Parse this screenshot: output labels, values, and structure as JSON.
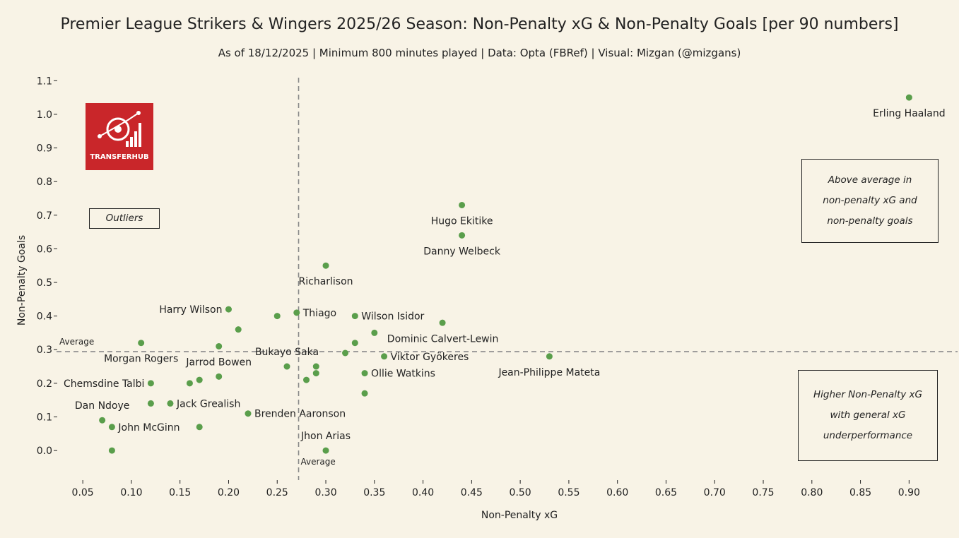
{
  "title": "Premier League Strikers & Wingers 2025/26 Season: Non-Penalty xG & Non-Penalty Goals [per 90 numbers]",
  "subtitle": "As of 18/12/2025 | Minimum 800 minutes played | Data: Opta (FBRef) | Visual: Mizgan (@mizgans)",
  "logo_text": "TRANSFERHUB",
  "annotations": {
    "outliers": "Outliers",
    "top_right": [
      "Above average in",
      "non-penalty xG and",
      "non-penalty goals"
    ],
    "bottom_right": [
      "Higher Non-Penalty xG",
      "with general xG",
      "underperformance"
    ]
  },
  "colors": {
    "point": "#5a9e4b",
    "background": "#f8f3e6",
    "logo": "#c9262a"
  },
  "chart_data": {
    "type": "scatter",
    "xlabel": "Non-Penalty xG",
    "ylabel": "Non-Penalty Goals",
    "xlim": [
      0.023,
      0.939
    ],
    "ylim": [
      -0.088,
      1.109
    ],
    "xticks": [
      "0.05",
      "0.10",
      "0.15",
      "0.20",
      "0.25",
      "0.30",
      "0.35",
      "0.40",
      "0.45",
      "0.50",
      "0.55",
      "0.60",
      "0.65",
      "0.70",
      "0.75",
      "0.80",
      "0.85",
      "0.90"
    ],
    "yticks": [
      "0.0",
      "0.1",
      "0.2",
      "0.3",
      "0.4",
      "0.5",
      "0.6",
      "0.7",
      "0.8",
      "0.9",
      "1.0",
      "1.1"
    ],
    "average_x": 0.272,
    "average_y": 0.294,
    "average_label": "Average",
    "grid": false,
    "points": [
      {
        "x": 0.9,
        "y": 1.05,
        "label": "Erling Haaland",
        "pos": "below"
      },
      {
        "x": 0.44,
        "y": 0.73,
        "label": "Hugo Ekitike",
        "pos": "below"
      },
      {
        "x": 0.44,
        "y": 0.64,
        "label": "Danny Welbeck",
        "pos": "below"
      },
      {
        "x": 0.3,
        "y": 0.55,
        "label": "Richarlison",
        "pos": "below"
      },
      {
        "x": 0.2,
        "y": 0.42,
        "label": "Harry Wilson",
        "pos": "left"
      },
      {
        "x": 0.25,
        "y": 0.4,
        "label": "",
        "pos": ""
      },
      {
        "x": 0.27,
        "y": 0.41,
        "label": "Thiago",
        "pos": "right"
      },
      {
        "x": 0.33,
        "y": 0.4,
        "label": "Wilson Isidor",
        "pos": "right"
      },
      {
        "x": 0.42,
        "y": 0.38,
        "label": "",
        "pos": ""
      },
      {
        "x": 0.21,
        "y": 0.36,
        "label": "",
        "pos": ""
      },
      {
        "x": 0.35,
        "y": 0.35,
        "label": "Dominic Calvert-Lewin",
        "pos": "below-right"
      },
      {
        "x": 0.11,
        "y": 0.32,
        "label": "Morgan Rogers",
        "pos": "below"
      },
      {
        "x": 0.33,
        "y": 0.32,
        "label": "",
        "pos": ""
      },
      {
        "x": 0.19,
        "y": 0.31,
        "label": "Jarrod Bowen",
        "pos": "below"
      },
      {
        "x": 0.32,
        "y": 0.29,
        "label": "",
        "pos": ""
      },
      {
        "x": 0.36,
        "y": 0.28,
        "label": "Viktor Gyökeres",
        "pos": "right"
      },
      {
        "x": 0.53,
        "y": 0.28,
        "label": "Jean-Philippe Mateta",
        "pos": "below"
      },
      {
        "x": 0.26,
        "y": 0.25,
        "label": "Bukayo Saka",
        "pos": "above"
      },
      {
        "x": 0.29,
        "y": 0.25,
        "label": "",
        "pos": ""
      },
      {
        "x": 0.29,
        "y": 0.23,
        "label": "",
        "pos": ""
      },
      {
        "x": 0.34,
        "y": 0.23,
        "label": "Ollie Watkins",
        "pos": "right"
      },
      {
        "x": 0.19,
        "y": 0.22,
        "label": "",
        "pos": ""
      },
      {
        "x": 0.28,
        "y": 0.21,
        "label": "",
        "pos": ""
      },
      {
        "x": 0.17,
        "y": 0.21,
        "label": "",
        "pos": ""
      },
      {
        "x": 0.16,
        "y": 0.2,
        "label": "",
        "pos": ""
      },
      {
        "x": 0.12,
        "y": 0.2,
        "label": "Chemsdine Talbi",
        "pos": "left"
      },
      {
        "x": 0.34,
        "y": 0.17,
        "label": "",
        "pos": ""
      },
      {
        "x": 0.12,
        "y": 0.14,
        "label": "",
        "pos": ""
      },
      {
        "x": 0.14,
        "y": 0.14,
        "label": "Jack Grealish",
        "pos": "right"
      },
      {
        "x": 0.22,
        "y": 0.11,
        "label": "Brenden Aaronson",
        "pos": "right"
      },
      {
        "x": 0.07,
        "y": 0.09,
        "label": "Dan Ndoye",
        "pos": "above"
      },
      {
        "x": 0.08,
        "y": 0.07,
        "label": "John McGinn",
        "pos": "right"
      },
      {
        "x": 0.17,
        "y": 0.07,
        "label": "",
        "pos": ""
      },
      {
        "x": 0.08,
        "y": 0.0,
        "label": "",
        "pos": ""
      },
      {
        "x": 0.3,
        "y": 0.0,
        "label": "Jhon Arias",
        "pos": "above"
      }
    ]
  }
}
